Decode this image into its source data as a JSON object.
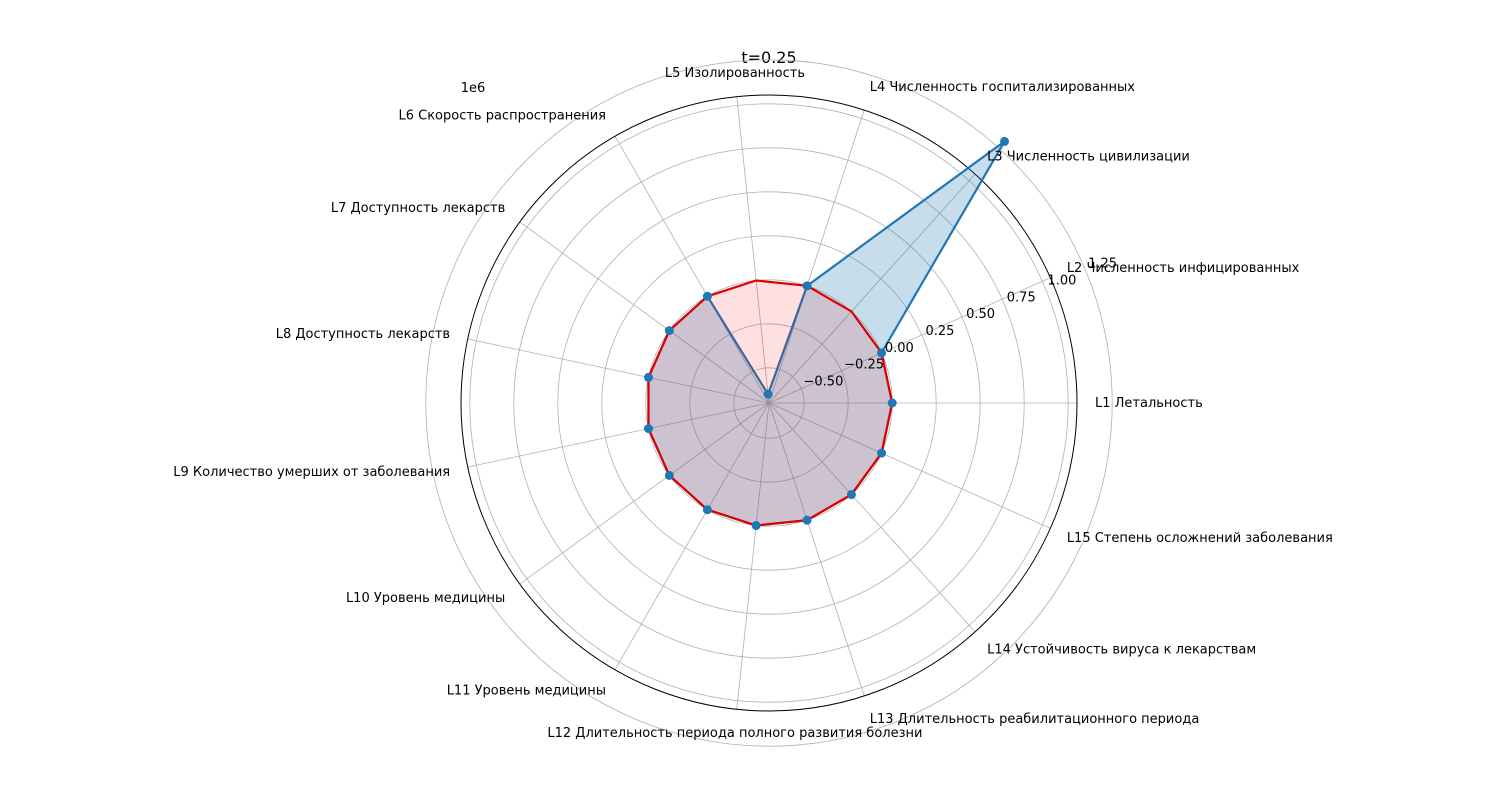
{
  "chart_data": {
    "type": "radar",
    "title": "t=0.25",
    "offset_label": "1e6",
    "categories": [
      "L1 Летальность",
      "L2 Численность инфицированных",
      "L3 Численность цивилизации",
      "L4 Численность госпитализированных",
      "L5 Изолированность",
      "L6 Скорость распространения",
      "L7 Доступность лекарств",
      "L8 Доступность лекарств",
      "L9 Количество умерших от заболевания",
      "L10 Уровень медицины",
      "L11 Уровень медицины",
      "L12 Длительность периода полного развития болезни",
      "L13 Длительность реабилитационного периода",
      "L14 Устойчивость вируса к лекарствам",
      "L15 Степень осложнений заболевания"
    ],
    "r_ticks": [
      -0.5,
      -0.25,
      0.0,
      0.25,
      0.5,
      0.75,
      1.0,
      1.25
    ],
    "r_tick_labels": [
      "−0.50",
      "−0.25",
      "0.00",
      "0.25",
      "0.50",
      "0.75",
      "1.00",
      "1.25"
    ],
    "rlim": [
      -0.7,
      1.05
    ],
    "grid": true,
    "series": [
      {
        "color": "#1f77b4",
        "fill": "#1f77b4",
        "values": [
          0.0,
          0.0,
          1.3,
          0.0,
          -0.65,
          0.0,
          0.0,
          0.0,
          0.0,
          0.0,
          0.0,
          0.0,
          0.0,
          0.0,
          0.0
        ]
      },
      {
        "color": "#e00000",
        "fill": "#ff0000",
        "values": [
          0.0,
          0.0,
          0.0,
          0.0,
          0.0,
          0.0,
          0.0,
          0.0,
          0.0,
          0.0,
          0.0,
          0.0,
          0.0,
          0.0,
          0.0
        ]
      }
    ]
  }
}
